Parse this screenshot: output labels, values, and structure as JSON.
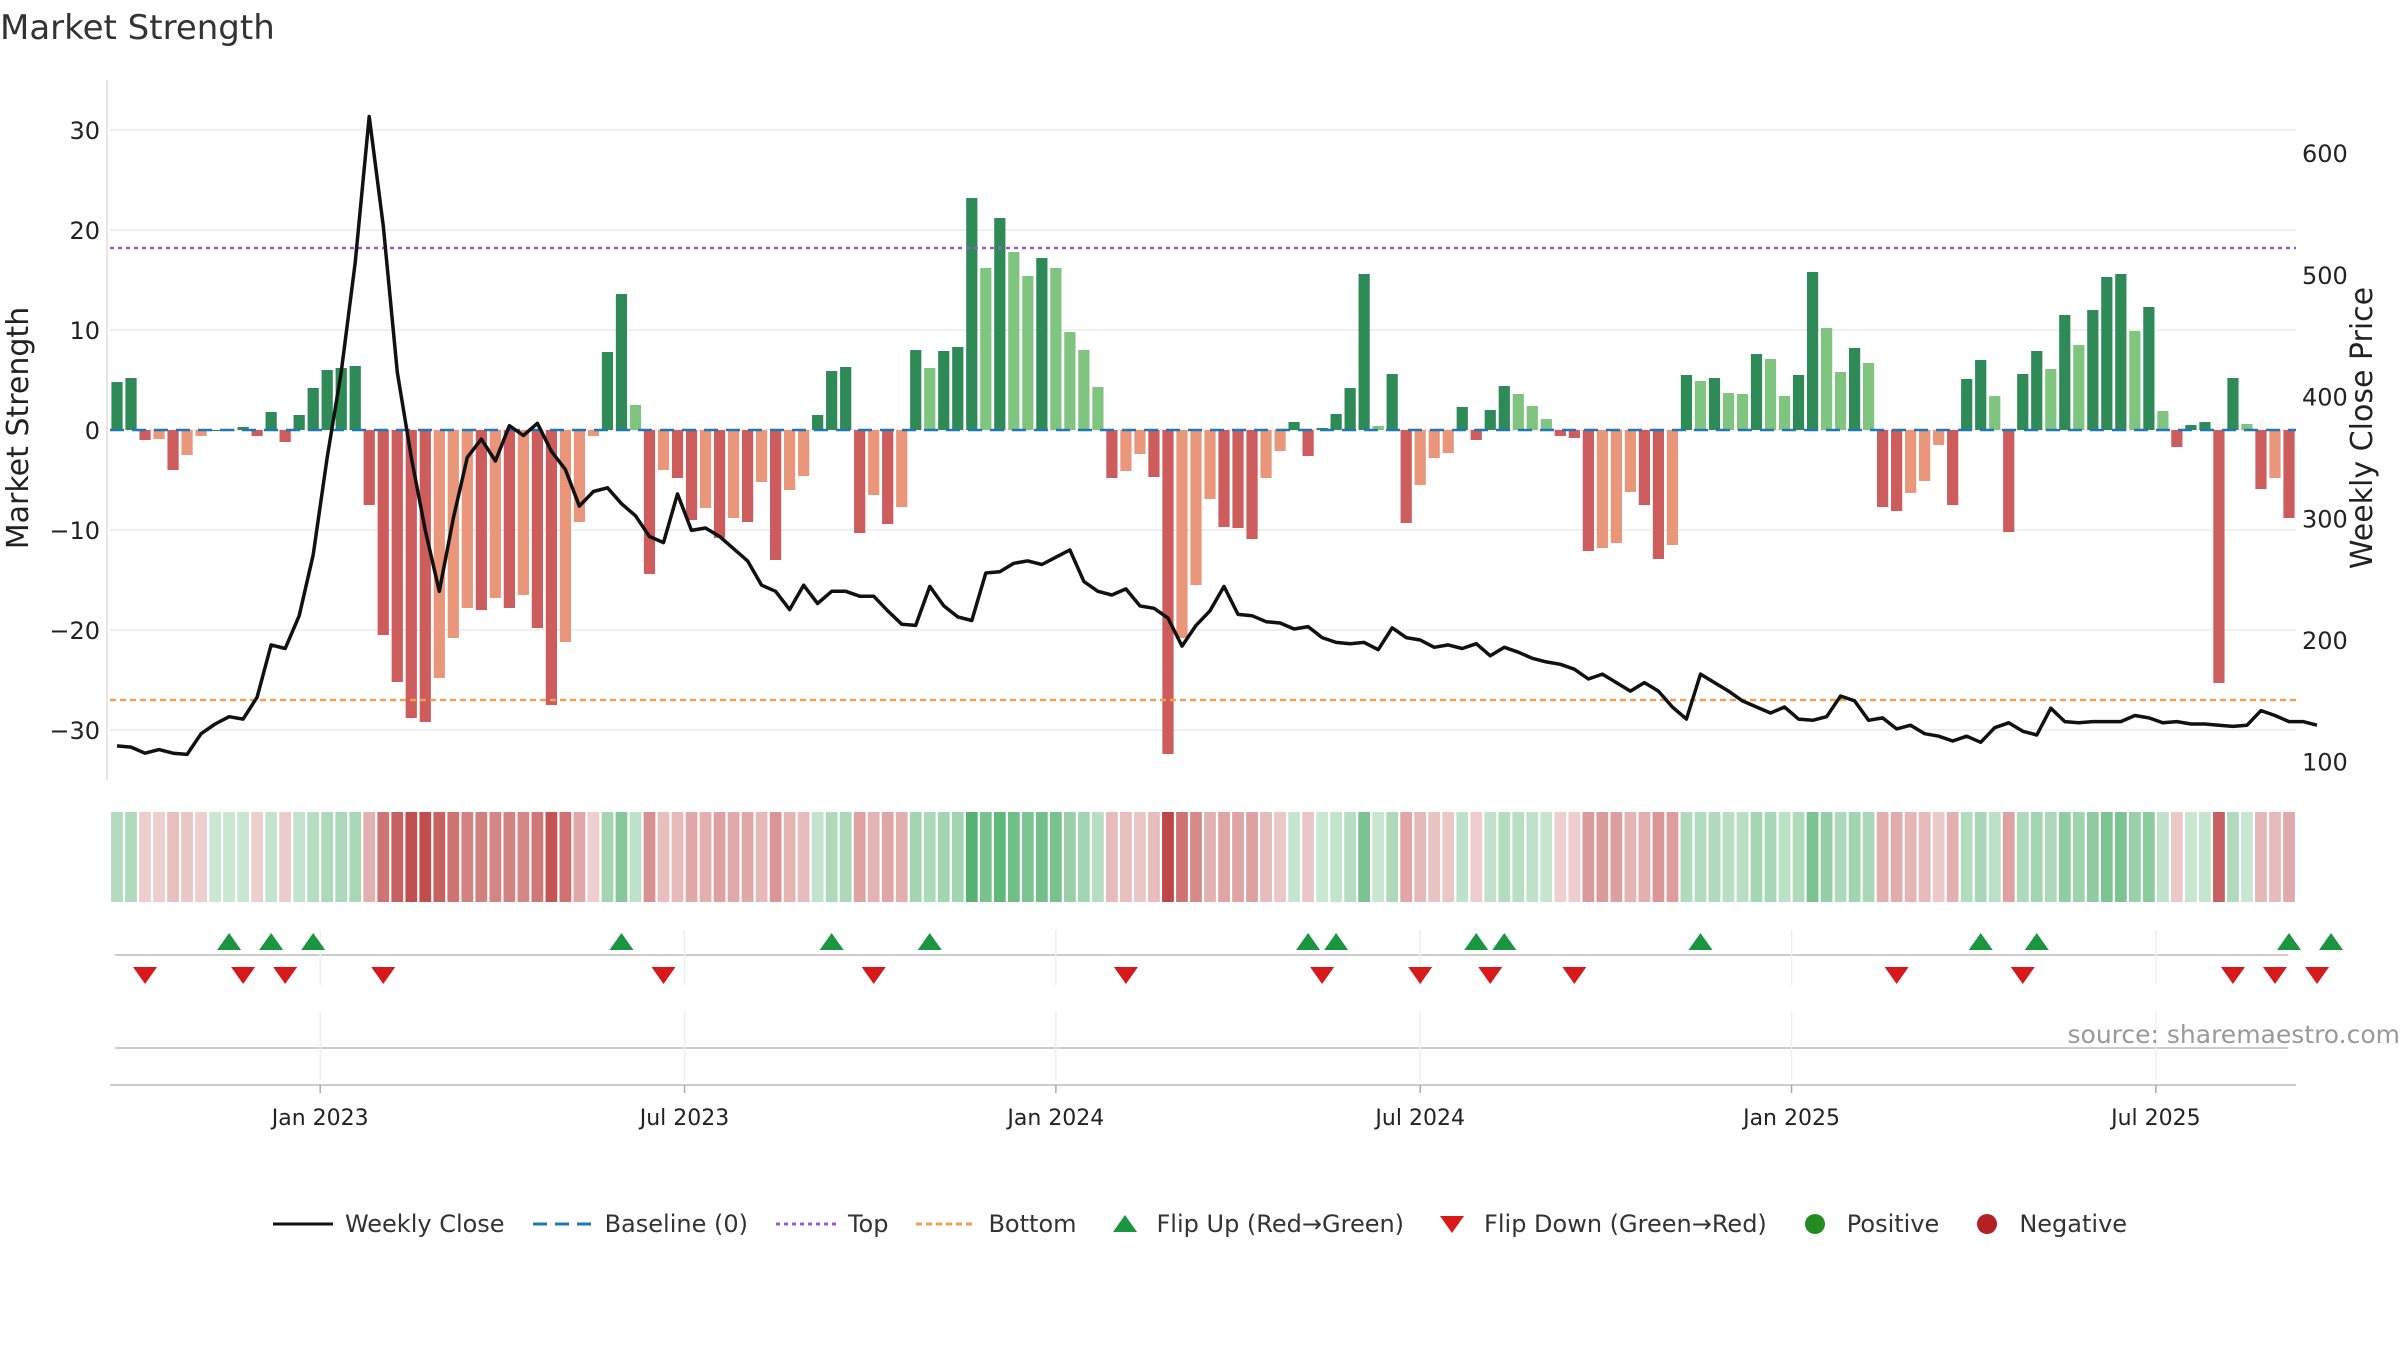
{
  "title": "Market Strength",
  "source_text": "source: sharemaestro.com",
  "legend": [
    {
      "key": "weekly_close",
      "label": "Weekly Close"
    },
    {
      "key": "baseline",
      "label": "Baseline (0)"
    },
    {
      "key": "top",
      "label": "Top"
    },
    {
      "key": "bottom",
      "label": "Bottom"
    },
    {
      "key": "flip_up",
      "label": "Flip Up (Red→Green)"
    },
    {
      "key": "flip_down",
      "label": "Flip Down (Green→Red)"
    },
    {
      "key": "positive",
      "label": "Positive"
    },
    {
      "key": "negative",
      "label": "Negative"
    }
  ],
  "colors": {
    "pos_strong": "#2e8b57",
    "pos_light": "#7fc47f",
    "neg_strong": "#cd5c5c",
    "neg_light": "#e9967a",
    "close_line": "#111111",
    "baseline": "#1f77b4",
    "top": "#9b59d0",
    "bottom": "#f0a050",
    "flip_up": "#1a9641",
    "flip_down": "#d7191c",
    "positive_dot": "#228b22",
    "negative_dot": "#b22222"
  },
  "chart_data": {
    "type": "bar",
    "y_label": "Market Strength",
    "y2_label": "Weekly Close Price",
    "y_ticks": [
      30,
      20,
      10,
      0,
      -10,
      -20,
      -30
    ],
    "y_tick_labels": [
      "30",
      "20",
      "10",
      "0",
      "−10",
      "−20",
      "−30"
    ],
    "y_range": [
      -35,
      35
    ],
    "y2_ticks": [
      600,
      500,
      400,
      300,
      200,
      100
    ],
    "y2_range": [
      85,
      660
    ],
    "top_level": 18.2,
    "bottom_level": -27.0,
    "x_start": "2022-09-19",
    "x_tick_labels": [
      "Jan 2023",
      "Jul 2023",
      "Jan 2024",
      "Jul 2024",
      "Jan 2025",
      "Jul 2025"
    ],
    "x_tick_weeks": [
      15,
      41,
      67.5,
      93.5,
      120,
      146
    ],
    "strength": [
      4.8,
      5.2,
      -1.0,
      -0.9,
      -4.0,
      -2.5,
      -0.6,
      0.0,
      0.0,
      0.3,
      -0.6,
      1.8,
      -1.2,
      1.5,
      4.2,
      6.0,
      6.2,
      6.4,
      -7.5,
      -20.5,
      -25.2,
      -28.8,
      -29.2,
      -24.8,
      -20.8,
      -17.8,
      -18.0,
      -16.8,
      -17.8,
      -16.5,
      -19.8,
      -27.5,
      -21.2,
      -9.2,
      -0.6,
      7.8,
      13.6,
      2.5,
      -14.4,
      -4.0,
      -4.8,
      -9.0,
      -7.8,
      -10.8,
      -8.8,
      -9.2,
      -5.2,
      -13.0,
      -6.0,
      -4.6,
      1.5,
      5.9,
      6.3,
      -10.3,
      -6.5,
      -9.4,
      -7.7,
      8.0,
      6.2,
      7.9,
      8.3,
      23.2,
      16.2,
      21.2,
      17.8,
      15.4,
      17.2,
      16.2,
      9.8,
      8.0,
      4.3,
      -4.8,
      -4.1,
      -2.4,
      -4.7,
      -32.4,
      -20.8,
      -15.5,
      -6.9,
      -9.7,
      -9.8,
      -10.9,
      -4.8,
      -2.1,
      0.8,
      -2.6,
      0.2,
      1.6,
      4.2,
      15.6,
      0.4,
      5.6,
      -9.3,
      -5.5,
      -2.8,
      -2.3,
      2.3,
      -1.0,
      2.0,
      4.4,
      3.6,
      2.4,
      1.1,
      -0.6,
      -0.8,
      -12.1,
      -11.8,
      -11.3,
      -6.2,
      -7.5,
      -12.9,
      -11.5,
      5.5,
      4.9,
      5.2,
      3.7,
      3.6,
      7.6,
      7.1,
      3.4,
      5.5,
      15.8,
      10.2,
      5.8,
      8.2,
      6.7,
      -7.7,
      -8.1,
      -6.3,
      -5.1,
      -1.5,
      -7.5,
      5.1,
      7.0,
      3.4,
      -10.2,
      5.6,
      7.9,
      6.1,
      11.5,
      8.5,
      12.0,
      15.3,
      15.6,
      9.9,
      12.3,
      1.9,
      -1.7,
      0.5,
      0.8,
      -25.3,
      5.2,
      0.6,
      -5.9,
      -4.8,
      -8.8
    ],
    "weekly_close": [
      113,
      112,
      107,
      110,
      107,
      106,
      123,
      131,
      137,
      135,
      153,
      196,
      193,
      220,
      270,
      350,
      420,
      510,
      630,
      540,
      420,
      350,
      290,
      240,
      300,
      350,
      365,
      347,
      376,
      368,
      378,
      355,
      340,
      310,
      322,
      325,
      312,
      302,
      285,
      280,
      320,
      290,
      292,
      285,
      275,
      265,
      245,
      240,
      225,
      245,
      230,
      240,
      240,
      236,
      236,
      224,
      213,
      212,
      244,
      228,
      219,
      216,
      255,
      256,
      263,
      265,
      262,
      268,
      274,
      248,
      240,
      237,
      242,
      228,
      226,
      218,
      195,
      212,
      224,
      244,
      221,
      220,
      215,
      214,
      209,
      211,
      202,
      198,
      197,
      198,
      192,
      210,
      202,
      200,
      194,
      196,
      193,
      197,
      187,
      194,
      190,
      185,
      182,
      180,
      176,
      168,
      172,
      165,
      158,
      165,
      158,
      145,
      135,
      172,
      165,
      158,
      150,
      145,
      140,
      145,
      135,
      134,
      137,
      154,
      150,
      134,
      136,
      127,
      130,
      123,
      121,
      117,
      121,
      116,
      128,
      132,
      125,
      122,
      144,
      133,
      132,
      133,
      133,
      133,
      138,
      136,
      132,
      133,
      131,
      131,
      130,
      129,
      130,
      142,
      138,
      133,
      133,
      130
    ],
    "flip_up_weeks": [
      8,
      11,
      14,
      36,
      51,
      58,
      85,
      87,
      97,
      99,
      113,
      133,
      137,
      155,
      158
    ],
    "flip_down_weeks": [
      2,
      9,
      12,
      19,
      39,
      54,
      72,
      86,
      93,
      98,
      104,
      127,
      136,
      151,
      154,
      157
    ]
  }
}
